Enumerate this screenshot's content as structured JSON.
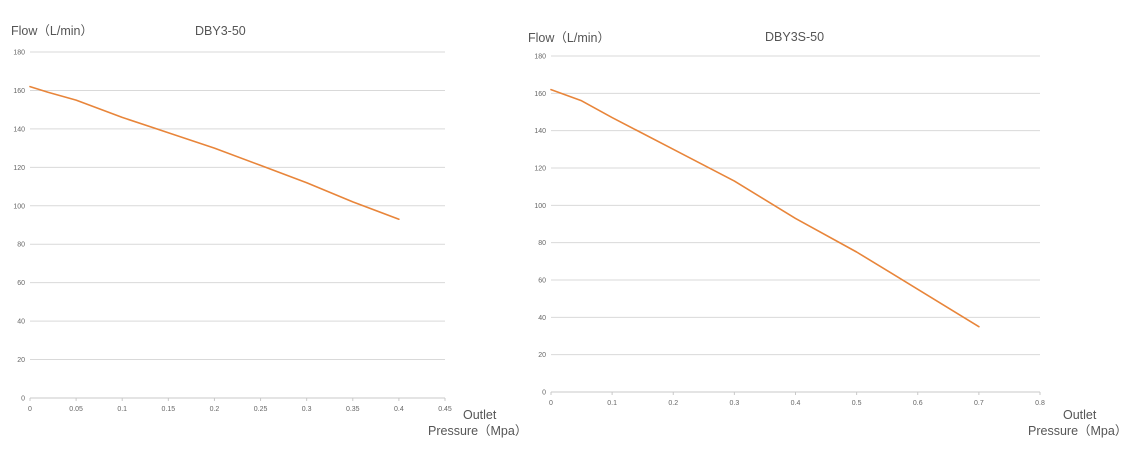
{
  "chart_data": [
    {
      "type": "line",
      "title": "DBY3-50",
      "ylabel": "Flow（L/min）",
      "xlabel": [
        "Outlet",
        "Pressure（Mpa）"
      ],
      "xlim": [
        0,
        0.45
      ],
      "ylim": [
        0,
        180
      ],
      "x_ticks": [
        "0",
        "0.05",
        "0.1",
        "0.15",
        "0.2",
        "0.25",
        "0.3",
        "0.35",
        "0.4",
        "0.45"
      ],
      "y_ticks": [
        "0",
        "20",
        "40",
        "60",
        "80",
        "100",
        "120",
        "140",
        "160",
        "180"
      ],
      "grid": true,
      "line_color": "#E8853A",
      "series": [
        {
          "x": [
            0,
            0.02,
            0.05,
            0.1,
            0.15,
            0.2,
            0.25,
            0.3,
            0.35,
            0.4
          ],
          "values": [
            162,
            159,
            155,
            146,
            138,
            130,
            121,
            112,
            102,
            93
          ]
        }
      ]
    },
    {
      "type": "line",
      "title": "DBY3S-50",
      "ylabel": "Flow（L/min）",
      "xlabel": [
        "Outlet",
        "Pressure（Mpa）"
      ],
      "xlim": [
        0,
        0.8
      ],
      "ylim": [
        0,
        180
      ],
      "x_ticks": [
        "0",
        "0.1",
        "0.2",
        "0.3",
        "0.4",
        "0.5",
        "0.6",
        "0.7",
        "0.8"
      ],
      "y_ticks": [
        "0",
        "20",
        "40",
        "60",
        "80",
        "100",
        "120",
        "140",
        "160",
        "180"
      ],
      "grid": true,
      "line_color": "#E8853A",
      "series": [
        {
          "x": [
            0,
            0.05,
            0.1,
            0.2,
            0.3,
            0.4,
            0.5,
            0.6,
            0.7
          ],
          "values": [
            162,
            156,
            147,
            130,
            113,
            93,
            75,
            55,
            35
          ]
        }
      ]
    }
  ]
}
